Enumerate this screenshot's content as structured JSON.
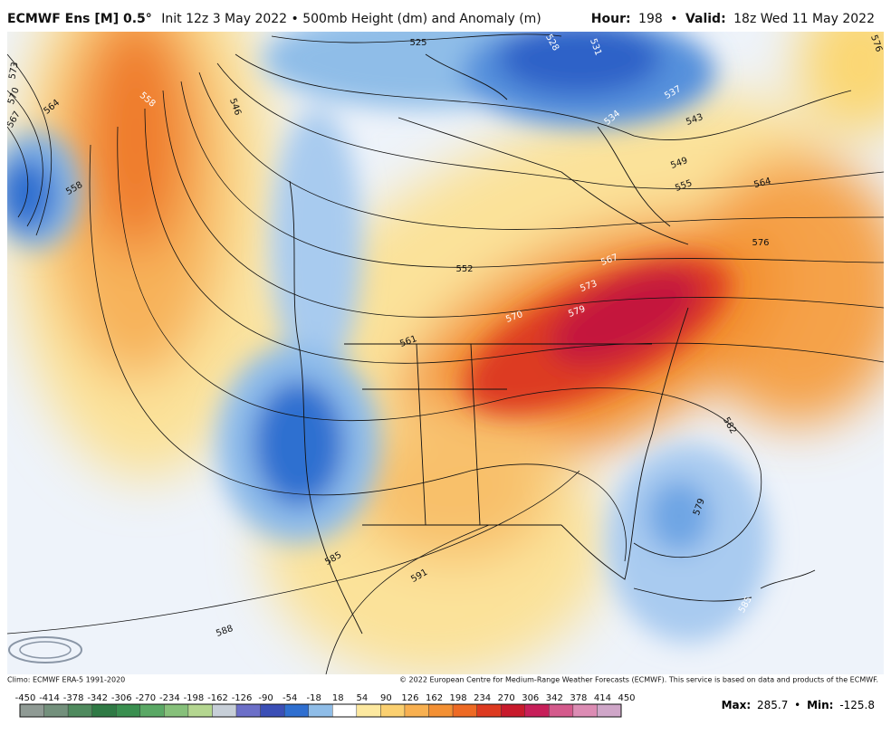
{
  "header": {
    "model": "ECMWF Ens [M] 0.5°",
    "init": "Init 12z 3 May 2022 • 500mb Height (dm) and Anomaly (m)",
    "hour_label": "Hour:",
    "hour": 198,
    "separator": "•",
    "valid_label": "Valid:",
    "valid": "18z Wed 11 May 2022"
  },
  "map": {
    "contour_labels": [
      525,
      528,
      531,
      534,
      537,
      543,
      549,
      555,
      564,
      576,
      576,
      573,
      570,
      567,
      564,
      558,
      546,
      558,
      552,
      561,
      567,
      573,
      570,
      579,
      582,
      579,
      585,
      591,
      588,
      585
    ]
  },
  "footer": {
    "climo": "Climo: ECMWF ERA-5 1991-2020",
    "copyright": "© 2022 European Centre for Medium-Range Weather Forecasts (ECMWF). This service is based on data and products of the ECMWF."
  },
  "colorbar": {
    "ticks": [
      -450,
      -414,
      -378,
      -342,
      -306,
      -270,
      -234,
      -198,
      -162,
      -126,
      -90,
      -54,
      -18,
      18,
      54,
      90,
      126,
      162,
      198,
      234,
      270,
      306,
      342,
      378,
      414,
      450
    ],
    "colors": [
      "#8f9a94",
      "#73907c",
      "#4f8a5e",
      "#2f7a45",
      "#3a8f50",
      "#5aa865",
      "#86c07a",
      "#b4d690",
      "#c7cfd8",
      "#6c6fc8",
      "#3b4fb6",
      "#2f6fd0",
      "#8fbde8",
      "#ffffff",
      "#fde9a0",
      "#fbd070",
      "#f8b050",
      "#f39034",
      "#ee6a24",
      "#dd3a20",
      "#c81a2c",
      "#c71f5a",
      "#d45a8c",
      "#dc8cb4",
      "#cfa6c8"
    ]
  },
  "stats": {
    "max_label": "Max:",
    "max": 285.7,
    "separator": "•",
    "min_label": "Min:",
    "min": -125.8
  }
}
